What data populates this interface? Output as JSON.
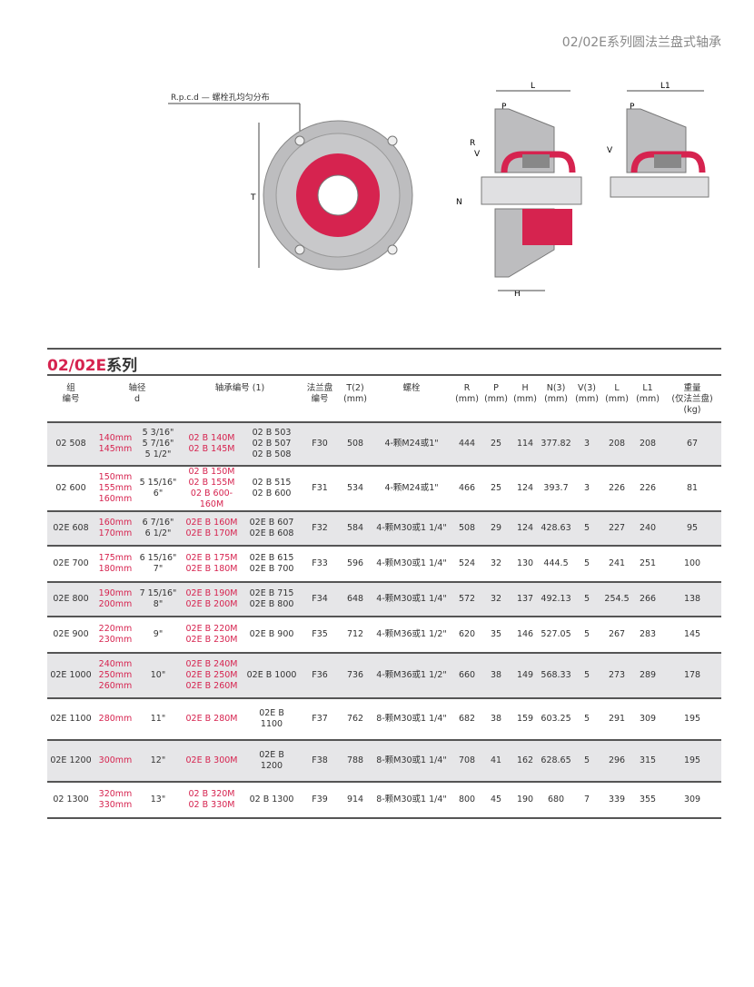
{
  "header_title": "02/02E系列圆法兰盘式轴承",
  "diagram": {
    "rpcd_label": "R.p.c.d — 螺栓孔均匀分布",
    "labels": {
      "T": "T",
      "L": "L",
      "L1": "L1",
      "P": "P",
      "V": "V",
      "N": "N",
      "R": "R",
      "H": "H"
    },
    "colors": {
      "seal": "#d6234f",
      "housing": "#b9b9bb"
    }
  },
  "section": {
    "title_red": "02/02E",
    "title_black": "系列"
  },
  "table": {
    "headers": [
      "组\n编号",
      "轴径\nd",
      "轴承编号 (1)",
      "法兰盘\n编号",
      "T(2)\n(mm)",
      "螺栓",
      "R\n(mm)",
      "P\n(mm)",
      "H\n(mm)",
      "N(3)\n(mm)",
      "V(3)\n(mm)",
      "L\n(mm)",
      "L1\n(mm)",
      "重量\n(仅法兰盘)\n(kg)"
    ],
    "rows": [
      {
        "group": "02 508",
        "mm": "140mm\n145mm",
        "inch": "5 3/16\"\n5 7/16\"\n5 1/2\"",
        "bearing_m": "02 B 140M\n02 B 145M",
        "bearing": "02 B 503\n02 B 507\n02 B 508",
        "flange": "F30",
        "T": "508",
        "bolt": "4-颗M24或1\"",
        "R": "444",
        "P": "25",
        "H": "114",
        "N": "377.82",
        "V": "3",
        "L": "208",
        "L1": "208",
        "weight": "67"
      },
      {
        "group": "02 600",
        "mm": "150mm\n155mm\n160mm",
        "inch": "5 15/16\"\n6\"",
        "bearing_m": "02 B 150M\n02 B 155M\n02 B 600-160M",
        "bearing": "02 B 515\n02 B 600",
        "flange": "F31",
        "T": "534",
        "bolt": "4-颗M24或1\"",
        "R": "466",
        "P": "25",
        "H": "124",
        "N": "393.7",
        "V": "3",
        "L": "226",
        "L1": "226",
        "weight": "81"
      },
      {
        "group": "02E 608",
        "mm": "160mm\n170mm",
        "inch": "6 7/16\"\n6 1/2\"",
        "bearing_m": "02E B 160M\n02E B 170M",
        "bearing": "02E B 607\n02E B 608",
        "flange": "F32",
        "T": "584",
        "bolt": "4-颗M30或1 1/4\"",
        "R": "508",
        "P": "29",
        "H": "124",
        "N": "428.63",
        "V": "5",
        "L": "227",
        "L1": "240",
        "weight": "95"
      },
      {
        "group": "02E 700",
        "mm": "175mm\n180mm",
        "inch": "6 15/16\"\n7\"",
        "bearing_m": "02E B 175M\n02E B 180M",
        "bearing": "02E B 615\n02E B 700",
        "flange": "F33",
        "T": "596",
        "bolt": "4-颗M30或1 1/4\"",
        "R": "524",
        "P": "32",
        "H": "130",
        "N": "444.5",
        "V": "5",
        "L": "241",
        "L1": "251",
        "weight": "100"
      },
      {
        "group": "02E 800",
        "mm": "190mm\n200mm",
        "inch": "7 15/16\"\n8\"",
        "bearing_m": "02E B 190M\n02E B 200M",
        "bearing": "02E B 715\n02E B 800",
        "flange": "F34",
        "T": "648",
        "bolt": "4-颗M30或1 1/4\"",
        "R": "572",
        "P": "32",
        "H": "137",
        "N": "492.13",
        "V": "5",
        "L": "254.5",
        "L1": "266",
        "weight": "138"
      },
      {
        "group": "02E 900",
        "mm": "220mm\n230mm",
        "inch": "9\"",
        "bearing_m": "02E B 220M\n02E B 230M",
        "bearing": "02E B 900",
        "flange": "F35",
        "T": "712",
        "bolt": "4-颗M36或1 1/2\"",
        "R": "620",
        "P": "35",
        "H": "146",
        "N": "527.05",
        "V": "5",
        "L": "267",
        "L1": "283",
        "weight": "145"
      },
      {
        "group": "02E 1000",
        "mm": "240mm\n250mm\n260mm",
        "inch": "10\"",
        "bearing_m": "02E B 240M\n02E B 250M\n02E B 260M",
        "bearing": "02E B 1000",
        "flange": "F36",
        "T": "736",
        "bolt": "4-颗M36或1 1/2\"",
        "R": "660",
        "P": "38",
        "H": "149",
        "N": "568.33",
        "V": "5",
        "L": "273",
        "L1": "289",
        "weight": "178"
      },
      {
        "group": "02E 1100",
        "mm": "280mm",
        "inch": "11\"",
        "bearing_m": "02E B 280M",
        "bearing": "02E B\n1100",
        "flange": "F37",
        "T": "762",
        "bolt": "8-颗M30或1 1/4\"",
        "R": "682",
        "P": "38",
        "H": "159",
        "N": "603.25",
        "V": "5",
        "L": "291",
        "L1": "309",
        "weight": "195"
      },
      {
        "group": "02E 1200",
        "mm": "300mm",
        "inch": "12\"",
        "bearing_m": "02E B 300M",
        "bearing": "02E B\n1200",
        "flange": "F38",
        "T": "788",
        "bolt": "8-颗M30或1 1/4\"",
        "R": "708",
        "P": "41",
        "H": "162",
        "N": "628.65",
        "V": "5",
        "L": "296",
        "L1": "315",
        "weight": "195"
      },
      {
        "group": "02 1300",
        "mm": "320mm\n330mm",
        "inch": "13\"",
        "bearing_m": "02 B 320M\n02 B 330M",
        "bearing": "02 B 1300",
        "flange": "F39",
        "T": "914",
        "bolt": "8-颗M30或1 1/4\"",
        "R": "800",
        "P": "45",
        "H": "190",
        "N": "680",
        "V": "7",
        "L": "339",
        "L1": "355",
        "weight": "309"
      }
    ]
  }
}
